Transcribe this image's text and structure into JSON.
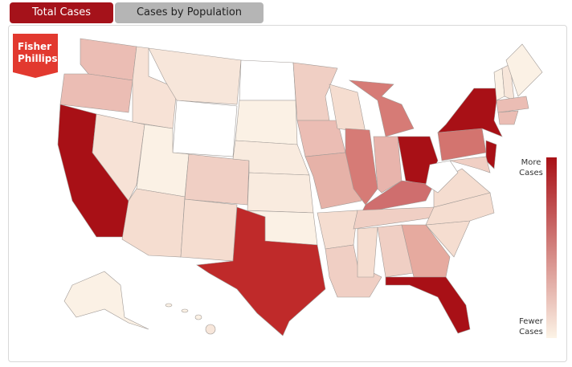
{
  "tabs": [
    "Total Cases",
    "Cases by Population"
  ],
  "logo": {
    "lines": [
      "Fisher",
      "Phillips"
    ]
  },
  "legend": {
    "top": [
      "More",
      "Cases"
    ],
    "bottom": [
      "Fewer",
      "Cases"
    ]
  }
}
